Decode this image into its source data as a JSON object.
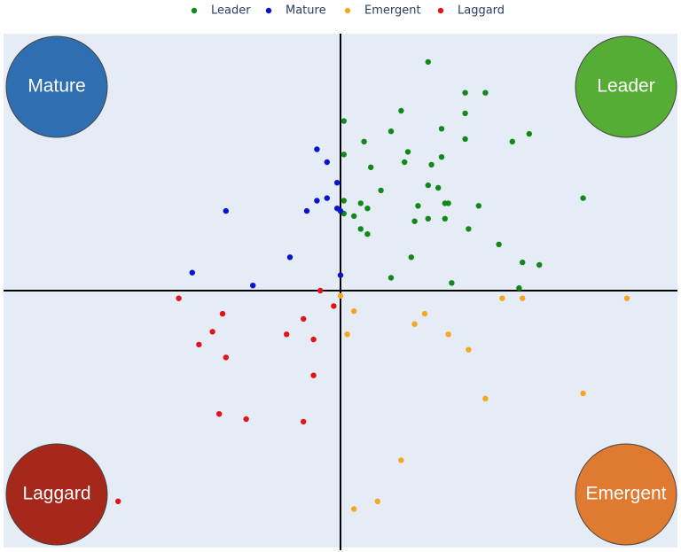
{
  "chart_data": {
    "type": "scatter",
    "xlim": [
      -100,
      100
    ],
    "ylim": [
      -100,
      100
    ],
    "zero_lines": true,
    "legend_position": "top",
    "quadrants": [
      {
        "label": "Mature",
        "color": "#2f6eb1",
        "corner": "top-left"
      },
      {
        "label": "Leader",
        "color": "#55ad35",
        "corner": "top-right"
      },
      {
        "label": "Laggard",
        "color": "#a5281a",
        "corner": "bottom-left"
      },
      {
        "label": "Emergent",
        "color": "#e07a30",
        "corner": "bottom-right"
      }
    ],
    "series": [
      {
        "name": "Leader",
        "color": "#12881a",
        "x": [
          26,
          37,
          43,
          18,
          37,
          1,
          15,
          30,
          56,
          7,
          37,
          51,
          20,
          1,
          19,
          30,
          27,
          9,
          26,
          29,
          12,
          72,
          1,
          6,
          8,
          23,
          31,
          32,
          41,
          1,
          4,
          22,
          26,
          31,
          6,
          8,
          38,
          47,
          21,
          54,
          59,
          15,
          33,
          53
        ],
        "values": [
          89,
          77,
          77,
          70,
          69,
          66,
          62,
          63,
          61,
          58,
          59,
          58,
          54,
          53,
          50,
          52,
          49,
          48,
          41,
          40,
          39,
          36,
          35,
          34,
          32,
          33,
          34,
          34,
          33,
          30,
          29,
          27,
          28,
          28,
          24,
          22,
          24,
          18,
          13,
          11,
          10,
          5,
          3,
          1
        ]
      },
      {
        "name": "Mature",
        "color": "#0a14cc",
        "x": [
          -7,
          -4,
          -1,
          -7,
          -4,
          -1,
          -34,
          -10,
          0,
          -15,
          -44,
          0,
          -26
        ],
        "values": [
          55,
          50,
          42,
          35,
          36,
          32,
          31,
          31,
          31,
          13,
          7,
          6,
          2
        ]
      },
      {
        "name": "Emergent",
        "color": "#f5a623",
        "x": [
          0,
          48,
          54,
          85,
          4,
          25,
          22,
          2,
          32,
          38,
          72,
          43,
          18,
          11,
          4
        ],
        "values": [
          -2,
          -3,
          -3,
          -3,
          -8,
          -9,
          -13,
          -17,
          -17,
          -23,
          -40,
          -42,
          -66,
          -82,
          -85
        ]
      },
      {
        "name": "Laggard",
        "color": "#e0141c",
        "x": [
          -6,
          -48,
          -2,
          -35,
          -11,
          -38,
          -16,
          -8,
          -42,
          -34,
          -8,
          -36,
          -28,
          -11,
          -66
        ],
        "values": [
          0,
          -3,
          -6,
          -9,
          -11,
          -16,
          -17,
          -19,
          -21,
          -26,
          -33,
          -48,
          -50,
          -51,
          -82
        ]
      }
    ]
  }
}
